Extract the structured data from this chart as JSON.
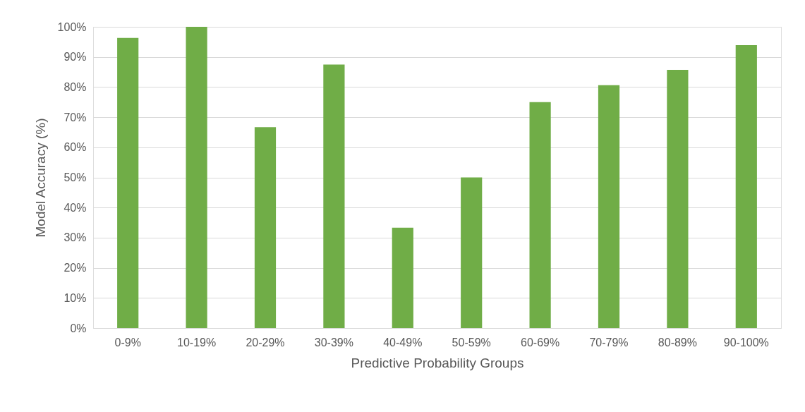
{
  "chart_data": {
    "type": "bar",
    "xlabel": "Predictive Probability Groups",
    "ylabel": "Model Accuracy (%)",
    "categories": [
      "0-9%",
      "10-19%",
      "20-29%",
      "30-39%",
      "40-49%",
      "50-59%",
      "60-69%",
      "70-79%",
      "80-89%",
      "90-100%"
    ],
    "values": [
      96.3,
      100,
      66.7,
      87.5,
      33.3,
      50,
      75,
      80.6,
      85.7,
      93.9
    ],
    "color": "#70ad47",
    "ylim": [
      0,
      100
    ],
    "yticks": [
      {
        "value": 0,
        "label": "0%"
      },
      {
        "value": 10,
        "label": "10%"
      },
      {
        "value": 20,
        "label": "20%"
      },
      {
        "value": 30,
        "label": "30%"
      },
      {
        "value": 40,
        "label": "40%"
      },
      {
        "value": 50,
        "label": "50%"
      },
      {
        "value": 60,
        "label": "60%"
      },
      {
        "value": 70,
        "label": "70%"
      },
      {
        "value": 80,
        "label": "80%"
      },
      {
        "value": 90,
        "label": "90%"
      },
      {
        "value": 100,
        "label": "100%"
      }
    ],
    "grid": "y"
  }
}
